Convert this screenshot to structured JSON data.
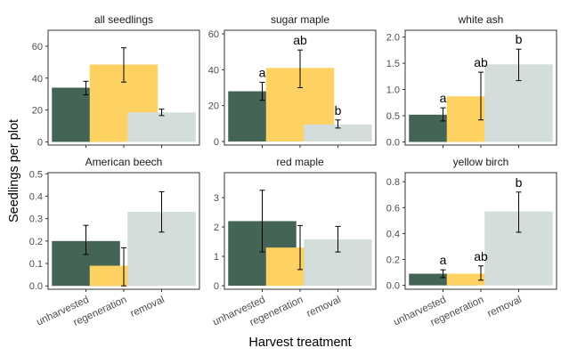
{
  "figure": {
    "ylabel": "Seedlings per plot",
    "xlabel": "Harvest treatment",
    "categories": [
      "unharvested",
      "regeneration",
      "removal"
    ],
    "colors": {
      "unharvested": "#446455",
      "regeneration": "#FDD262",
      "removal": "#D3DDDC"
    }
  },
  "chart_data": [
    {
      "type": "bar",
      "title": "all seedlings",
      "categories": [
        "unharvested",
        "regeneration",
        "removal"
      ],
      "values": [
        34,
        48.5,
        18.5
      ],
      "err_low": [
        29.5,
        37.5,
        16.5
      ],
      "err_high": [
        38,
        59,
        20.5
      ],
      "letters": [
        "",
        "",
        ""
      ],
      "ylim": [
        -2,
        70
      ],
      "yticks": [
        0,
        20,
        40,
        60
      ],
      "tick_labels": [
        "0",
        "20",
        "40",
        "60"
      ]
    },
    {
      "type": "bar",
      "title": "sugar maple",
      "categories": [
        "unharvested",
        "regeneration",
        "removal"
      ],
      "values": [
        28,
        41,
        9.5
      ],
      "err_low": [
        23,
        30,
        7.5
      ],
      "err_high": [
        33,
        51,
        12
      ],
      "letters": [
        "a",
        "ab",
        "b"
      ],
      "ylim": [
        -2,
        62
      ],
      "yticks": [
        0,
        20,
        40,
        60
      ],
      "tick_labels": [
        "0",
        "20",
        "40",
        "60"
      ]
    },
    {
      "type": "bar",
      "title": "white ash",
      "categories": [
        "unharvested",
        "regeneration",
        "removal"
      ],
      "values": [
        0.52,
        0.87,
        1.48
      ],
      "err_low": [
        0.4,
        0.42,
        1.17
      ],
      "err_high": [
        0.65,
        1.33,
        1.77
      ],
      "letters": [
        "a",
        "ab",
        "b"
      ],
      "ylim": [
        -0.06,
        2.13
      ],
      "yticks": [
        0,
        0.5,
        1,
        1.5,
        2
      ],
      "tick_labels": [
        "0.0",
        "0.5",
        "1.0",
        "1.5",
        "2.0"
      ]
    },
    {
      "type": "bar",
      "title": "American beech",
      "categories": [
        "unharvested",
        "regeneration",
        "removal"
      ],
      "values": [
        0.2,
        0.09,
        0.33
      ],
      "err_low": [
        0.14,
        0.0,
        0.24
      ],
      "err_high": [
        0.27,
        0.17,
        0.42
      ],
      "letters": [
        "",
        "",
        ""
      ],
      "ylim": [
        -0.015,
        0.505
      ],
      "yticks": [
        0,
        0.1,
        0.2,
        0.3,
        0.4,
        0.5
      ],
      "tick_labels": [
        "0.0",
        "0.1",
        "0.2",
        "0.3",
        "0.4",
        "0.5"
      ]
    },
    {
      "type": "bar",
      "title": "red maple",
      "categories": [
        "unharvested",
        "regeneration",
        "removal"
      ],
      "values": [
        2.2,
        1.3,
        1.58
      ],
      "err_low": [
        1.15,
        0.55,
        1.15
      ],
      "err_high": [
        3.25,
        2.05,
        2.02
      ],
      "letters": [
        "",
        "",
        ""
      ],
      "ylim": [
        -0.12,
        3.85
      ],
      "yticks": [
        0,
        1,
        2,
        3
      ],
      "tick_labels": [
        "0",
        "1",
        "2",
        "3"
      ]
    },
    {
      "type": "bar",
      "title": "yellow birch",
      "categories": [
        "unharvested",
        "regeneration",
        "removal"
      ],
      "values": [
        0.09,
        0.09,
        0.57
      ],
      "err_low": [
        0.06,
        0.04,
        0.41
      ],
      "err_high": [
        0.12,
        0.15,
        0.72
      ],
      "letters": [
        "a",
        "ab",
        "b"
      ],
      "ylim": [
        -0.03,
        0.87
      ],
      "yticks": [
        0,
        0.2,
        0.4,
        0.6,
        0.8
      ],
      "tick_labels": [
        "0.0",
        "0.2",
        "0.4",
        "0.6",
        "0.8"
      ]
    }
  ]
}
